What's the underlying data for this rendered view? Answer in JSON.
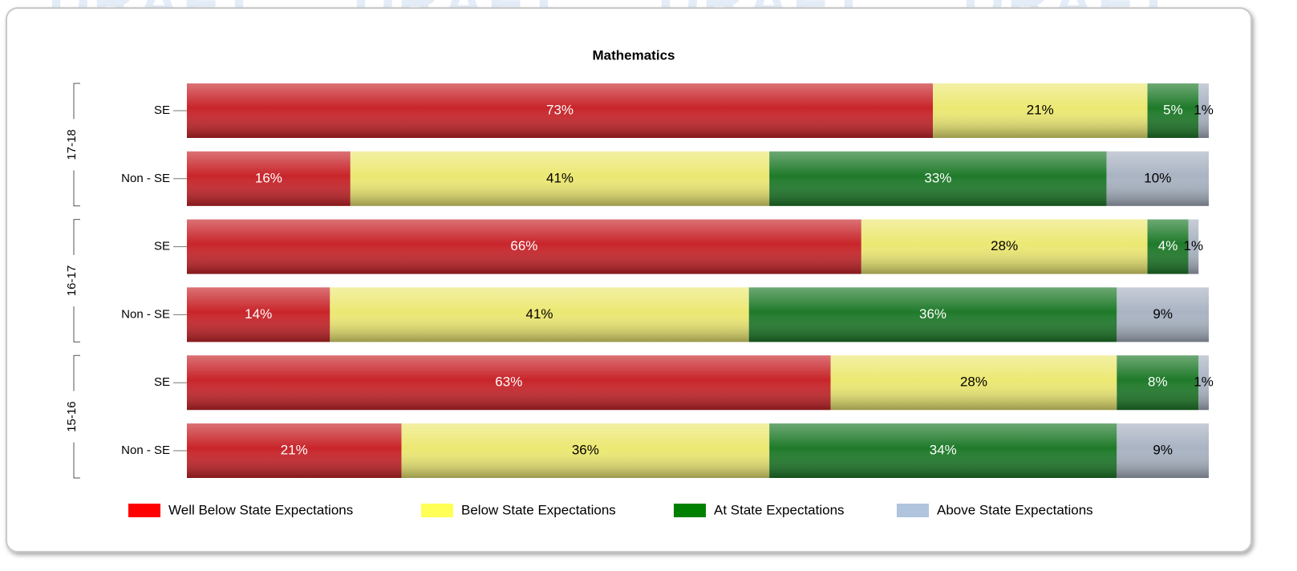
{
  "chart_data": {
    "type": "stacked-bar-horizontal",
    "title": "Mathematics",
    "watermark": "DRAFT",
    "groups": [
      "17-18",
      "16-17",
      "15-16"
    ],
    "categories": [
      "SE",
      "Non - SE",
      "SE",
      "Non - SE",
      "SE",
      "Non - SE"
    ],
    "xlim": [
      0,
      100
    ],
    "series": [
      {
        "name": "Well Below State Expectations",
        "color": "#ff0000",
        "bar_color": "#c8252a",
        "label_color": "#ffffff",
        "values": [
          73,
          16,
          66,
          14,
          63,
          21
        ],
        "value_labels": [
          "73%",
          "16%",
          "66%",
          "14%",
          "63%",
          "21%"
        ]
      },
      {
        "name": "Below State Expectations",
        "color": "#ffff55",
        "bar_color": "#ece873",
        "label_color": "#000000",
        "values": [
          21,
          41,
          28,
          41,
          28,
          36
        ],
        "value_labels": [
          "21%",
          "41%",
          "28%",
          "41%",
          "28%",
          "36%"
        ]
      },
      {
        "name": "At State Expectations",
        "color": "#008000",
        "bar_color": "#1f7a2a",
        "label_color": "#ffffff",
        "values": [
          5,
          33,
          4,
          36,
          8,
          34
        ],
        "value_labels": [
          "5%",
          "33%",
          "4%",
          "36%",
          "8%",
          "34%"
        ]
      },
      {
        "name": "Above State Expectations",
        "color": "#b0c4de",
        "bar_color": "#a9b3c2",
        "label_color": "#000000",
        "values": [
          1,
          10,
          1,
          9,
          1,
          9
        ],
        "value_labels": [
          "1%",
          "10%",
          "1%",
          "9%",
          "1%",
          "9%"
        ]
      }
    ],
    "legend": "bottom"
  }
}
